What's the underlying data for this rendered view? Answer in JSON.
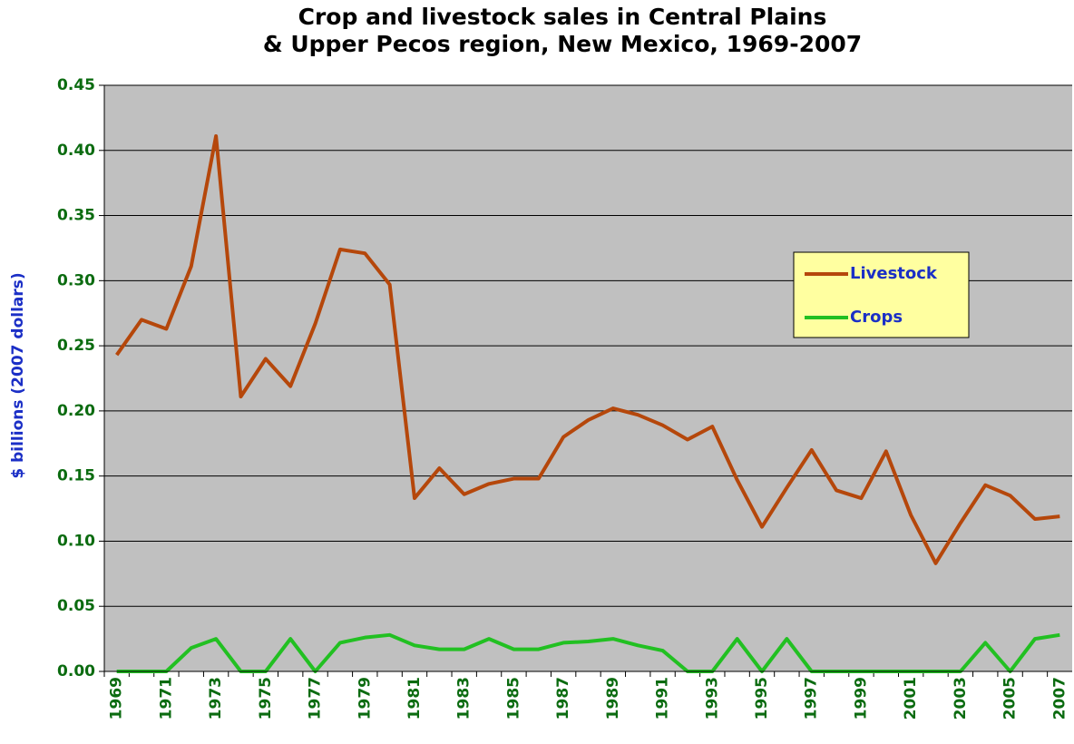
{
  "chart_data": {
    "type": "line",
    "title": [
      "Crop and livestock sales in Central Plains",
      "& Upper Pecos region, New Mexico, 1969-2007"
    ],
    "y_label": "$ billions (2007 dollars)",
    "categories": [
      "1969",
      null,
      "1971",
      null,
      "1973",
      null,
      "1975",
      null,
      "1977",
      null,
      "1979",
      null,
      "1981",
      null,
      "1983",
      null,
      "1985",
      null,
      "1987",
      null,
      "1989",
      null,
      "1991",
      null,
      "1993",
      null,
      "1995",
      null,
      "1997",
      null,
      "1999",
      null,
      "2001",
      null,
      "2003",
      null,
      "2005",
      null,
      "2007"
    ],
    "series": [
      {
        "name": "Livestock",
        "color": "#b5470b",
        "values": [
          0.243,
          0.27,
          0.263,
          0.311,
          0.411,
          0.211,
          0.24,
          0.219,
          0.267,
          0.324,
          0.321,
          0.297,
          0.133,
          0.156,
          0.136,
          0.144,
          0.148,
          0.148,
          0.18,
          0.193,
          0.202,
          0.197,
          0.189,
          0.178,
          0.188,
          0.147,
          0.111,
          0.141,
          0.17,
          0.139,
          0.133,
          0.169,
          0.12,
          0.083,
          0.114,
          0.143,
          0.135,
          0.117,
          0.119
        ]
      },
      {
        "name": "Crops",
        "color": "#22c022",
        "values": [
          0,
          0,
          0,
          0.018,
          0.025,
          0,
          0,
          0.025,
          0,
          0.022,
          0.026,
          0.028,
          0.02,
          0.017,
          0.017,
          0.025,
          0.017,
          0.017,
          0.022,
          0.023,
          0.025,
          0.02,
          0.016,
          0,
          0,
          0.025,
          0,
          0.025,
          0,
          0,
          0,
          0,
          0,
          0,
          0,
          0.022,
          0,
          0.025,
          0.028
        ]
      }
    ],
    "ylim": [
      0,
      0.45
    ],
    "yticks": [
      {
        "value": 0,
        "label": "0.00"
      },
      {
        "value": 0.05,
        "label": "0.05"
      },
      {
        "value": 0.1,
        "label": "0.10"
      },
      {
        "value": 0.15,
        "label": "0.15"
      },
      {
        "value": 0.2,
        "label": "0.20"
      },
      {
        "value": 0.25,
        "label": "0.25"
      },
      {
        "value": 0.3,
        "label": "0.30"
      },
      {
        "value": 0.35,
        "label": "0.35"
      },
      {
        "value": 0.4,
        "label": "0.40"
      },
      {
        "value": 0.45,
        "label": "0.45"
      }
    ],
    "grid": true,
    "background": "#c0c0c0",
    "legend_background": "#ffffa0"
  }
}
